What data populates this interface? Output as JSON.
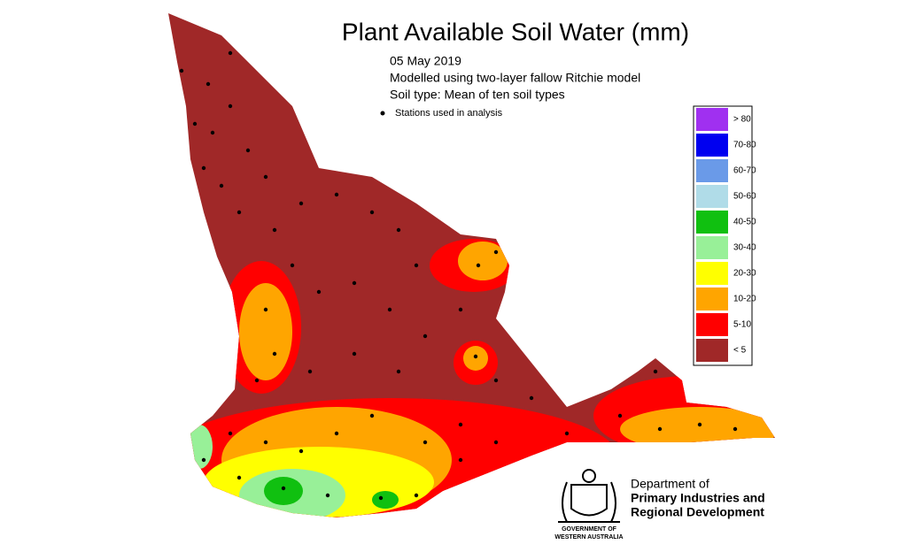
{
  "title": "Plant Available Soil Water (mm)",
  "subtitle": [
    "05 May 2019",
    "Modelled using two-layer fallow Ritchie model",
    "Soil type: Mean of ten soil types"
  ],
  "stations_label": "Stations used in analysis",
  "legend": [
    {
      "label": "> 80",
      "color": "#a030f0"
    },
    {
      "label": "70-80",
      "color": "#0000f0"
    },
    {
      "label": "60-70",
      "color": "#6a9ae8"
    },
    {
      "label": "50-60",
      "color": "#b0dce8"
    },
    {
      "label": "40-50",
      "color": "#10c010"
    },
    {
      "label": "30-40",
      "color": "#98f098"
    },
    {
      "label": "20-30",
      "color": "#ffff00"
    },
    {
      "label": "10-20",
      "color": "#ffa500"
    },
    {
      "label": "5-10",
      "color": "#ff0000"
    },
    {
      "label": "< 5",
      "color": "#a02828"
    }
  ],
  "logo": {
    "department": [
      "Department of",
      "Primary Industries and",
      "Regional Development"
    ],
    "government": [
      "GOVERNMENT OF",
      "WESTERN AUSTRALIA"
    ]
  }
}
